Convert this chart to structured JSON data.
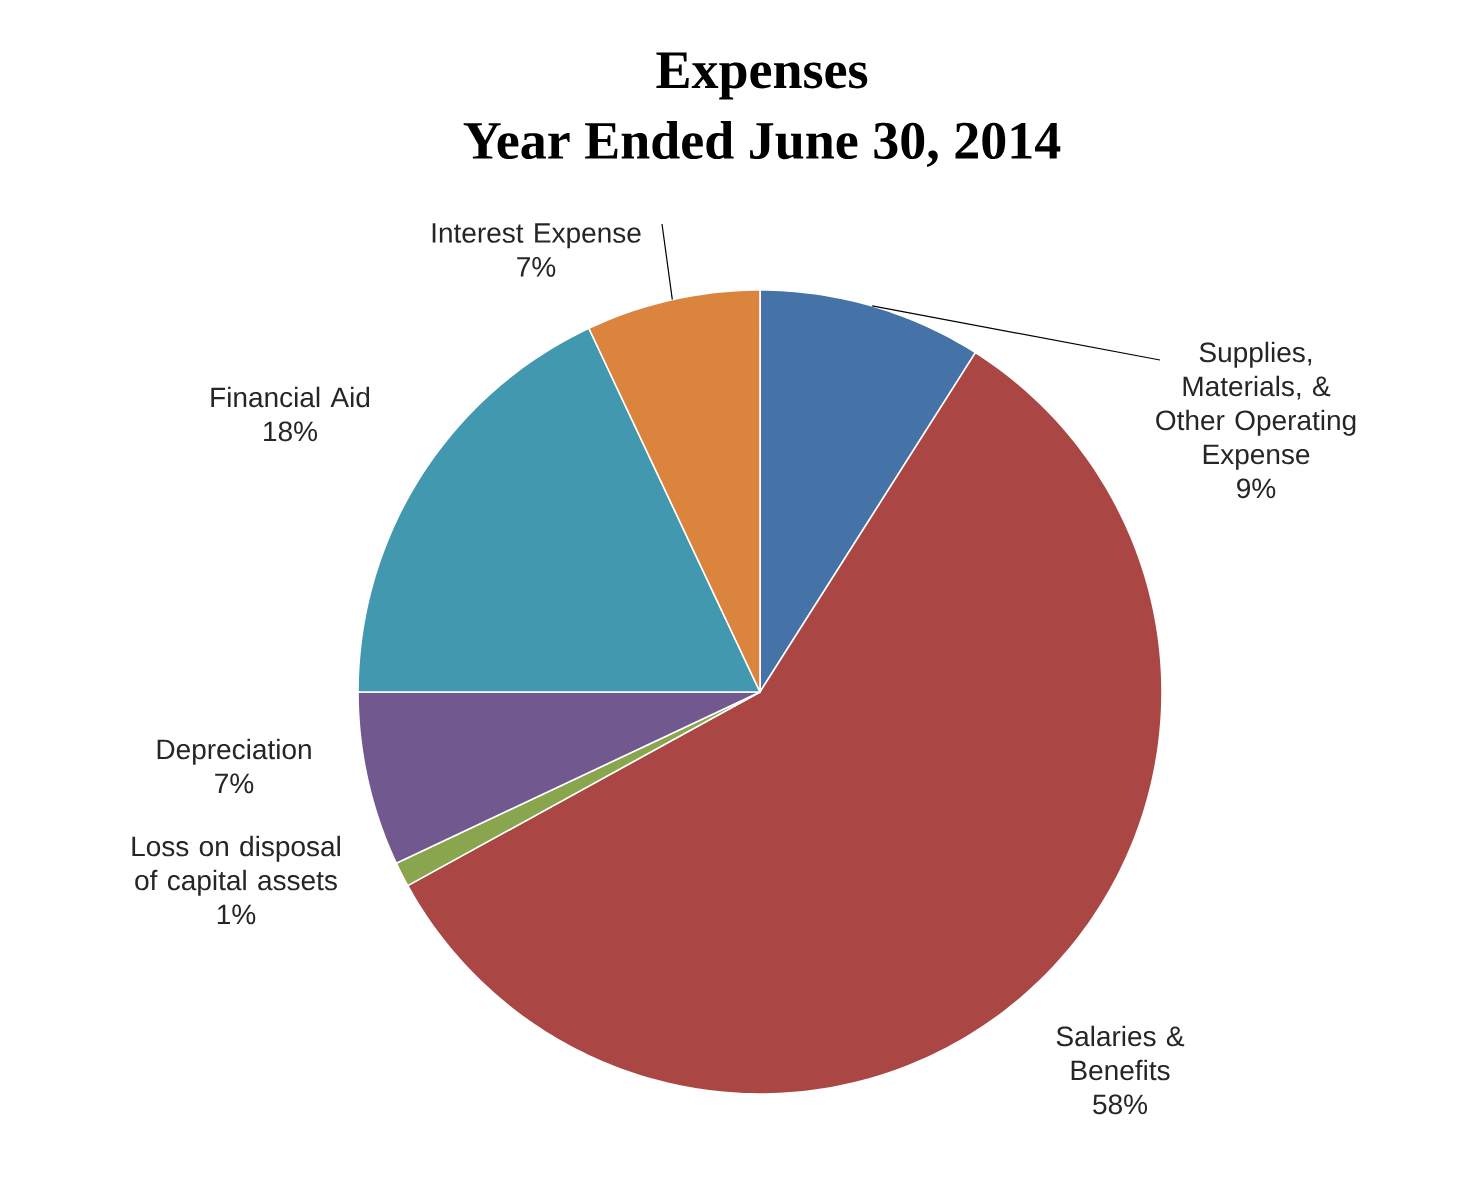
{
  "chart_data": {
    "type": "pie",
    "title": "Expenses",
    "subtitle": "Year Ended June 30, 2014",
    "categories": [
      "Supplies, Materials, & Other Operating Expense",
      "Salaries & Benefits",
      "Loss on disposal of capital assets",
      "Depreciation",
      "Financial Aid",
      "Interest Expense"
    ],
    "values": [
      9,
      58,
      1,
      7,
      18,
      7
    ],
    "value_labels": [
      "9%",
      "58%",
      "1%",
      "7%",
      "18%",
      "7%"
    ],
    "colors": [
      "#4572a7",
      "#aa4643",
      "#89a54e",
      "#71588f",
      "#4198af",
      "#db843d"
    ]
  }
}
